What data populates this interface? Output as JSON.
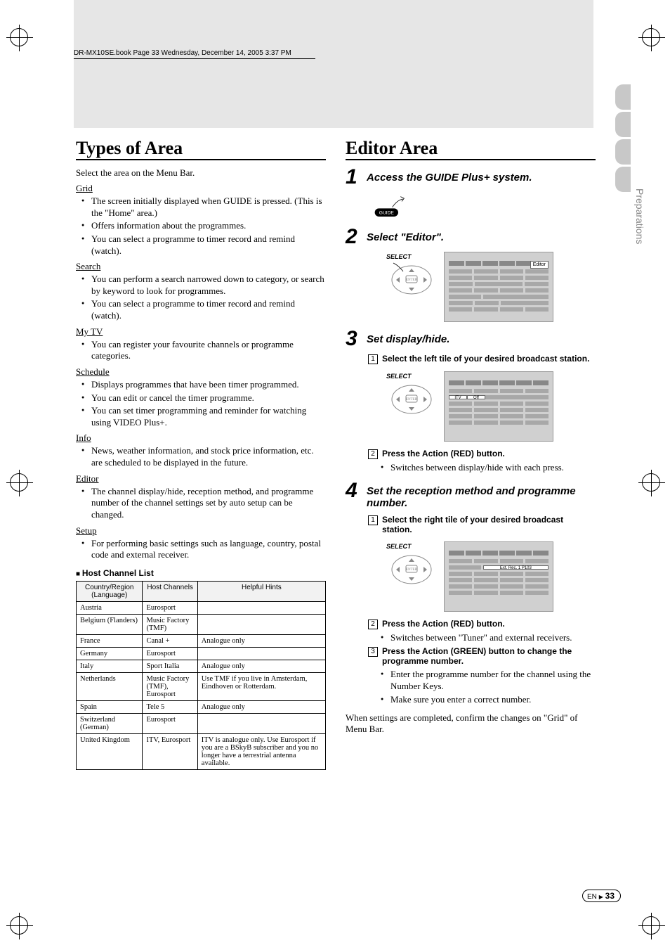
{
  "header_line": "DR-MX10SE.book  Page 33  Wednesday, December 14, 2005  3:37 PM",
  "side_label": "Preparations",
  "left": {
    "title": "Types of Area",
    "intro": "Select the area on the Menu Bar.",
    "sections": [
      {
        "head": "Grid",
        "items": [
          "The screen initially displayed when GUIDE is pressed. (This is the \"Home\" area.)",
          "Offers information about the programmes.",
          "You can select a programme to timer record and remind (watch)."
        ]
      },
      {
        "head": "Search",
        "items": [
          "You can perform a search narrowed down to category, or search by keyword to look for programmes.",
          "You can select a programme to timer record and remind (watch)."
        ]
      },
      {
        "head": "My TV",
        "items": [
          "You can register your favourite channels or programme categories."
        ]
      },
      {
        "head": "Schedule",
        "items": [
          "Displays programmes that have been timer programmed.",
          "You can edit or cancel the timer programme.",
          "You can set timer programming and reminder for watching using VIDEO Plus+."
        ]
      },
      {
        "head": "Info",
        "items": [
          "News, weather information, and stock price information, etc. are scheduled to be displayed in the future."
        ]
      },
      {
        "head": "Editor",
        "items": [
          "The channel display/hide, reception method, and programme number of the channel settings set by auto setup can be changed."
        ]
      },
      {
        "head": "Setup",
        "items": [
          "For performing basic settings such as language, country, postal code and external receiver."
        ]
      }
    ],
    "table_title": "Host Channel List",
    "columns": [
      "Country/Region (Language)",
      "Host Channels",
      "Helpful Hints"
    ],
    "rows": [
      [
        "Austria",
        "Eurosport",
        ""
      ],
      [
        "Belgium (Flanders)",
        "Music Factory (TMF)",
        ""
      ],
      [
        "France",
        "Canal +",
        "Analogue only"
      ],
      [
        "Germany",
        "Eurosport",
        ""
      ],
      [
        "Italy",
        "Sport Italia",
        "Analogue only"
      ],
      [
        "Netherlands",
        "Music Factory (TMF), Eurosport",
        "Use TMF if you live in Amsterdam, Eindhoven or Rotterdam."
      ],
      [
        "Spain",
        "Tele 5",
        "Analogue only"
      ],
      [
        "Switzerland (German)",
        "Eurosport",
        ""
      ],
      [
        "United Kingdom",
        "ITV, Eurosport",
        "ITV is analogue only. Use Eurosport if you are a BSkyB subscriber and you no longer have a terrestrial antenna available."
      ]
    ]
  },
  "right": {
    "title": "Editor Area",
    "step1": "Access the GUIDE Plus+ system.",
    "step2": "Select \"Editor\".",
    "step3": "Set display/hide.",
    "step3_1": "Select the left tile of your desired broadcast station.",
    "step3_2": "Press the Action (RED) button.",
    "step3_2_note": "Switches between display/hide with each press.",
    "step4": "Set the reception method and programme number.",
    "step4_1": "Select the right tile of your desired broadcast station.",
    "step4_2": "Press the Action (RED) button.",
    "step4_2_note": "Switches between \"Tuner\" and external receivers.",
    "step4_3": "Press the Action (GREEN) button to change the programme number.",
    "step4_3_notes": [
      "Enter the programme number for the channel using the Number Keys.",
      "Make sure you enter a correct number."
    ],
    "closing": "When settings are completed, confirm the changes on \"Grid\" of Menu Bar.",
    "select_label": "SELECT",
    "enter_label": "ENTER",
    "guide_label": "GUIDE",
    "chip_editor": "Editor",
    "chip_itv": "ITV",
    "chip_off": "Off",
    "chip_rec": "Ext. Rec. 1 P103"
  },
  "footer": {
    "lang": "EN",
    "page": "33"
  }
}
